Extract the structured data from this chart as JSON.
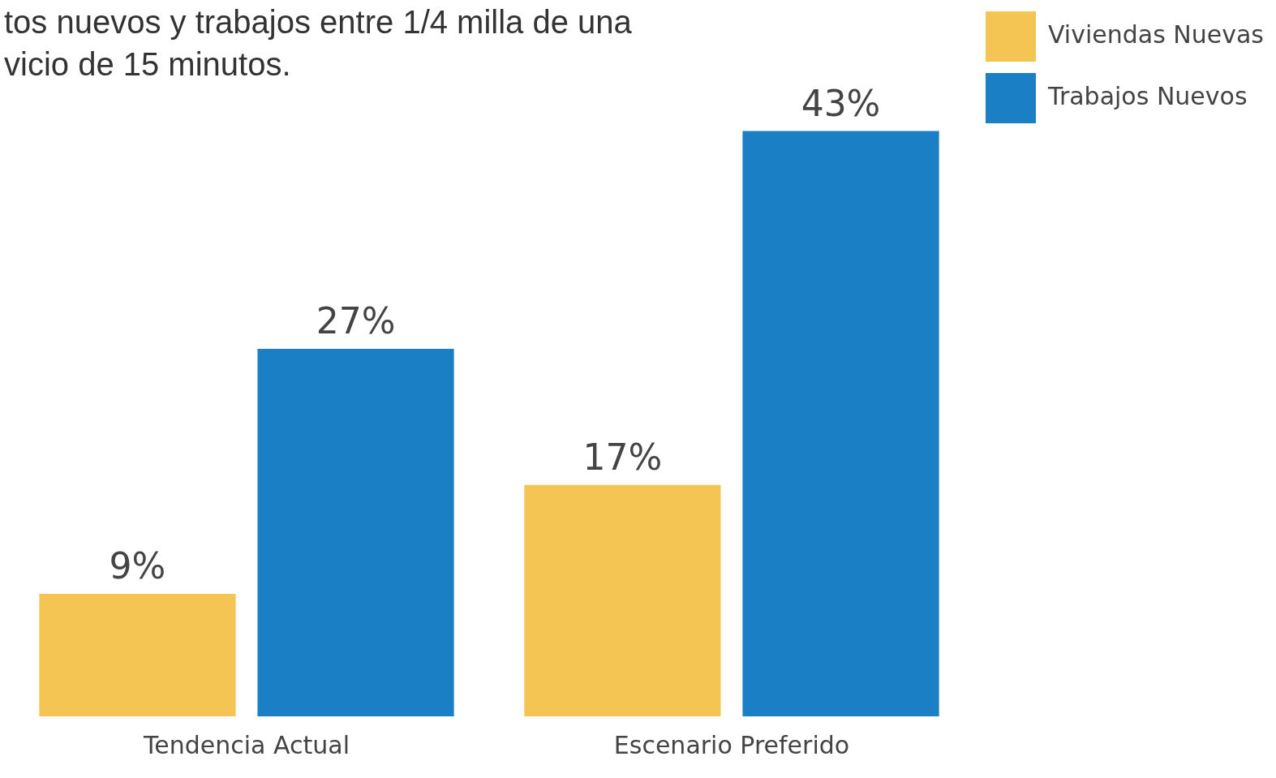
{
  "chart_data": {
    "type": "bar",
    "title": [
      "tos nuevos y trabajos entre 1/4 milla de una",
      "vicio de 15 minutos."
    ],
    "categories": [
      "Tendencia Actual",
      "Escenario Preferido"
    ],
    "series": [
      {
        "name": "Viviendas Nuevas",
        "color": "#f4c552",
        "values": [
          9,
          17
        ],
        "value_labels": [
          "9%",
          "17%"
        ]
      },
      {
        "name": "Trabajos Nuevos",
        "color": "#1a7fc4",
        "values": [
          27,
          43
        ],
        "value_labels": [
          "27%",
          "43%"
        ]
      }
    ],
    "legend": "right",
    "grid": false
  }
}
